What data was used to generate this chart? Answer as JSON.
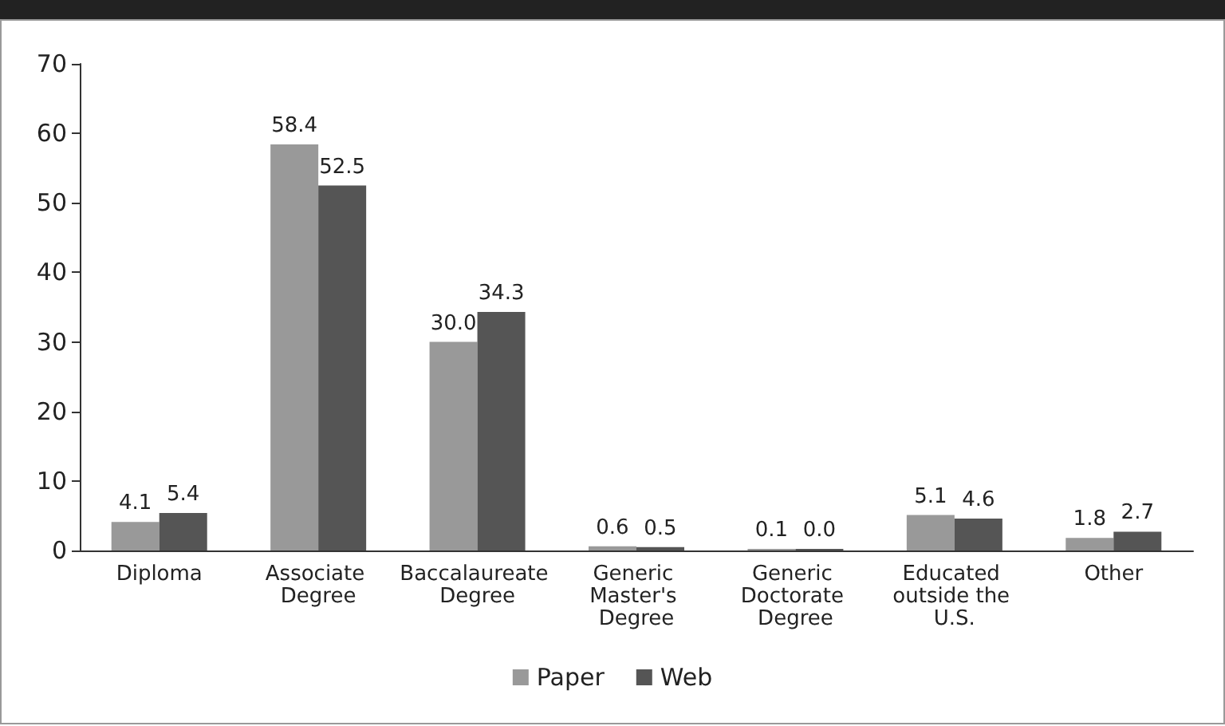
{
  "chart_data": {
    "type": "bar",
    "categories": [
      "Diploma",
      "Associate Degree",
      "Baccalaureate Degree",
      "Generic Master's Degree",
      "Generic Doctorate Degree",
      "Educated outside the U.S.",
      "Other"
    ],
    "series": [
      {
        "name": "Paper",
        "color": "#999999",
        "values": [
          4.1,
          58.4,
          30.0,
          0.6,
          0.1,
          5.1,
          1.8
        ],
        "value_labels": [
          "4.1",
          "58.4",
          "30.0",
          "0.6",
          "0.1",
          "5.1",
          "1.8"
        ]
      },
      {
        "name": "Web",
        "color": "#555555",
        "values": [
          5.4,
          52.5,
          34.3,
          0.5,
          0.0,
          4.6,
          2.7
        ],
        "value_labels": [
          "5.4",
          "52.5",
          "34.3",
          "0.5",
          "0.0",
          "4.6",
          "2.7"
        ]
      }
    ],
    "ylim": [
      0,
      70
    ],
    "yticks": [
      0,
      10,
      20,
      30,
      40,
      50,
      60,
      70
    ],
    "grid": false,
    "legend": "bottom"
  }
}
